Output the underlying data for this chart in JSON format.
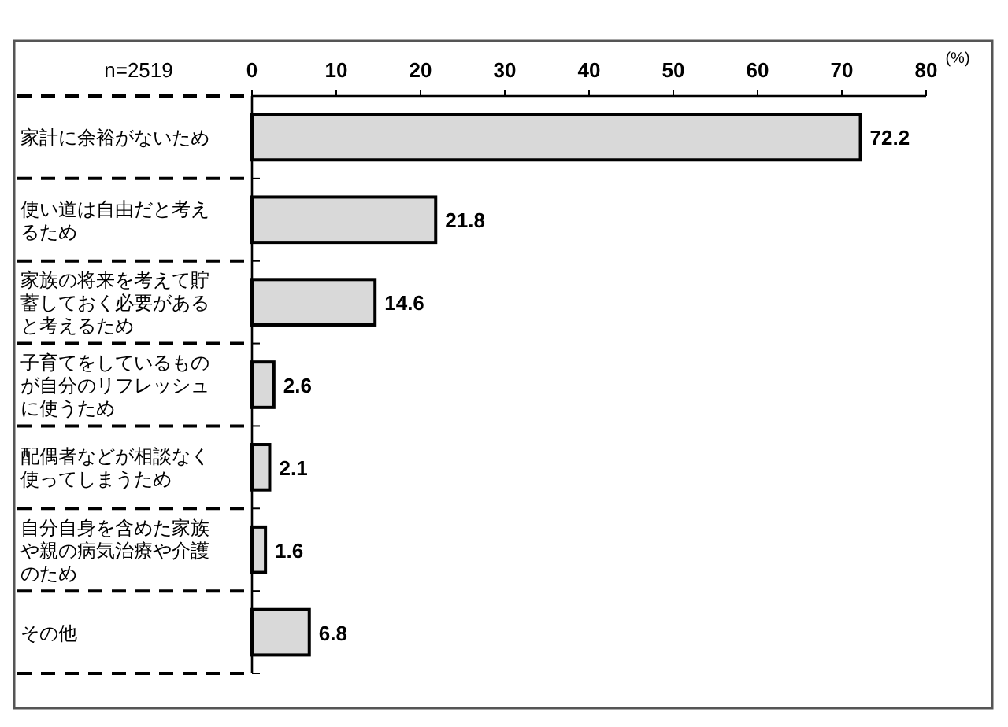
{
  "chart_data": {
    "type": "bar",
    "orientation": "horizontal",
    "categories": [
      "家計に余裕がないため",
      "使い道は自由だと考えるため",
      "家族の将来を考えて貯蓄しておく必要があると考えるため",
      "子育てをしているものが自分のリフレッシュに使うため",
      "配偶者などが相談なく使ってしまうため",
      "自分自身を含めた家族や親の病気治療や介護のため",
      "その他"
    ],
    "values": [
      72.2,
      21.8,
      14.6,
      2.6,
      2.1,
      1.6,
      6.8
    ],
    "color": "#d9d9d9",
    "xlim": [
      0,
      80
    ],
    "xticks": [
      0,
      10,
      20,
      30,
      40,
      50,
      60,
      70,
      80
    ],
    "xlabel": "(%)",
    "annotations": [
      "n=2519"
    ],
    "data_labels": true
  }
}
